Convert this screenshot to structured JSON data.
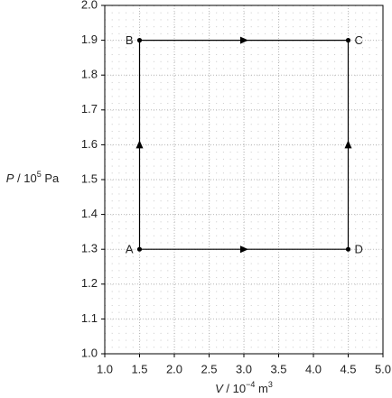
{
  "chart_data": {
    "type": "line",
    "x_label": {
      "symbol": "V",
      "text": " / 10",
      "exponent": "−4",
      "unit": " m",
      "unit_exponent": "3"
    },
    "y_label": {
      "symbol": "P",
      "text": " / 10",
      "exponent": "5",
      "unit": " Pa"
    },
    "x": [
      1.5,
      1.5,
      4.5,
      4.5
    ],
    "values": [
      1.3,
      1.9,
      1.9,
      1.3
    ],
    "point_labels": [
      "A",
      "B",
      "C",
      "D"
    ],
    "color": "#000000",
    "xlim": [
      1.0,
      5.0
    ],
    "xticks": [
      {
        "value": 1,
        "label": "1.0"
      },
      1.5,
      {
        "value": 2,
        "label": "2.0"
      },
      2.5,
      {
        "value": 3,
        "label": "3.0"
      },
      3.5,
      {
        "value": 4,
        "label": "4.0"
      },
      4.5,
      {
        "value": 5,
        "label": "5.0"
      }
    ],
    "ylim": [
      1.0,
      2.0
    ],
    "yticks": [
      {
        "value": 1,
        "label": "1.0"
      },
      1.1,
      1.2,
      1.3,
      1.4,
      1.5,
      1.6,
      1.7,
      1.8,
      1.9,
      {
        "value": 2,
        "label": "2.0"
      }
    ],
    "grid": true
  }
}
